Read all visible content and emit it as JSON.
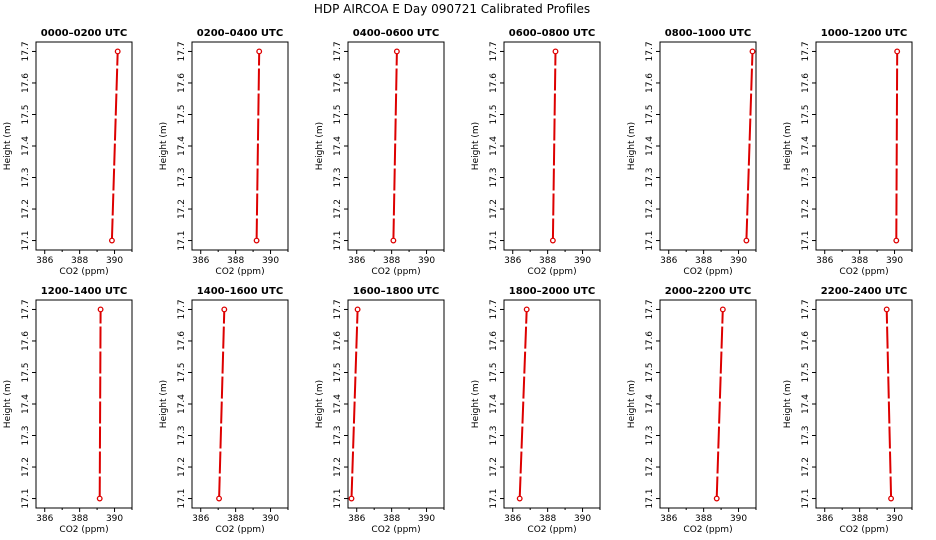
{
  "title": "HDP AIRCOA E  Day 090721  Calibrated Profiles",
  "colors": {
    "profile": "#dd0000",
    "axis": "#000000",
    "background": "#ffffff"
  },
  "chart_data": [
    {
      "type": "line",
      "title": "0000–0200 UTC",
      "xlabel": "CO2 (ppm)",
      "ylabel": "Height (m)",
      "xlim": [
        385.5,
        391
      ],
      "ylim": [
        17.07,
        17.73
      ],
      "xticks": [
        386,
        388,
        390
      ],
      "xtick_labels": [
        "386",
        "388",
        "390"
      ],
      "yticks": [
        17.1,
        17.2,
        17.3,
        17.4,
        17.5,
        17.6,
        17.7
      ],
      "ytick_labels": [
        "17.1",
        "17.2",
        "17.3",
        "17.4",
        "17.5",
        "17.6",
        "17.7"
      ],
      "grid": false,
      "series": [
        {
          "x": [
            389.85,
            390.18
          ],
          "y": [
            17.1,
            17.7
          ]
        }
      ]
    },
    {
      "type": "line",
      "title": "0200–0400 UTC",
      "xlabel": "CO2 (ppm)",
      "ylabel": "Height (m)",
      "xlim": [
        385.5,
        391
      ],
      "ylim": [
        17.07,
        17.73
      ],
      "xticks": [
        386,
        388,
        390
      ],
      "xtick_labels": [
        "386",
        "388",
        "390"
      ],
      "yticks": [
        17.1,
        17.2,
        17.3,
        17.4,
        17.5,
        17.6,
        17.7
      ],
      "ytick_labels": [
        "17.1",
        "17.2",
        "17.3",
        "17.4",
        "17.5",
        "17.6",
        "17.7"
      ],
      "grid": false,
      "series": [
        {
          "x": [
            389.2,
            389.35
          ],
          "y": [
            17.1,
            17.7
          ]
        }
      ]
    },
    {
      "type": "line",
      "title": "0400–0600 UTC",
      "xlabel": "CO2 (ppm)",
      "ylabel": "Height (m)",
      "xlim": [
        385.5,
        391
      ],
      "ylim": [
        17.07,
        17.73
      ],
      "xticks": [
        386,
        388,
        390
      ],
      "xtick_labels": [
        "386",
        "388",
        "390"
      ],
      "yticks": [
        17.1,
        17.2,
        17.3,
        17.4,
        17.5,
        17.6,
        17.7
      ],
      "ytick_labels": [
        "17.1",
        "17.2",
        "17.3",
        "17.4",
        "17.5",
        "17.6",
        "17.7"
      ],
      "grid": false,
      "series": [
        {
          "x": [
            388.1,
            388.3
          ],
          "y": [
            17.1,
            17.7
          ]
        }
      ]
    },
    {
      "type": "line",
      "title": "0600–0800 UTC",
      "xlabel": "CO2 (ppm)",
      "ylabel": "Height (m)",
      "xlim": [
        385.5,
        391
      ],
      "ylim": [
        17.07,
        17.73
      ],
      "xticks": [
        386,
        388,
        390
      ],
      "xtick_labels": [
        "386",
        "388",
        "390"
      ],
      "yticks": [
        17.1,
        17.2,
        17.3,
        17.4,
        17.5,
        17.6,
        17.7
      ],
      "ytick_labels": [
        "17.1",
        "17.2",
        "17.3",
        "17.4",
        "17.5",
        "17.6",
        "17.7"
      ],
      "grid": false,
      "series": [
        {
          "x": [
            388.3,
            388.45
          ],
          "y": [
            17.1,
            17.7
          ]
        }
      ]
    },
    {
      "type": "line",
      "title": "0800–1000 UTC",
      "xlabel": "CO2 (ppm)",
      "ylabel": "Height (m)",
      "xlim": [
        385.5,
        391
      ],
      "ylim": [
        17.07,
        17.73
      ],
      "xticks": [
        386,
        388,
        390
      ],
      "xtick_labels": [
        "386",
        "388",
        "390"
      ],
      "yticks": [
        17.1,
        17.2,
        17.3,
        17.4,
        17.5,
        17.6,
        17.7
      ],
      "ytick_labels": [
        "17.1",
        "17.2",
        "17.3",
        "17.4",
        "17.5",
        "17.6",
        "17.7"
      ],
      "grid": false,
      "series": [
        {
          "x": [
            390.45,
            390.8
          ],
          "y": [
            17.1,
            17.7
          ]
        }
      ]
    },
    {
      "type": "line",
      "title": "1000–1200 UTC",
      "xlabel": "CO2 (ppm)",
      "ylabel": "Height (m)",
      "xlim": [
        385.5,
        391
      ],
      "ylim": [
        17.07,
        17.73
      ],
      "xticks": [
        386,
        388,
        390
      ],
      "xtick_labels": [
        "386",
        "388",
        "390"
      ],
      "yticks": [
        17.1,
        17.2,
        17.3,
        17.4,
        17.5,
        17.6,
        17.7
      ],
      "ytick_labels": [
        "17.1",
        "17.2",
        "17.3",
        "17.4",
        "17.5",
        "17.6",
        "17.7"
      ],
      "grid": false,
      "series": [
        {
          "x": [
            390.1,
            390.15
          ],
          "y": [
            17.1,
            17.7
          ]
        }
      ]
    },
    {
      "type": "line",
      "title": "1200–1400 UTC",
      "xlabel": "CO2 (ppm)",
      "ylabel": "Height (m)",
      "xlim": [
        385.5,
        391
      ],
      "ylim": [
        17.07,
        17.73
      ],
      "xticks": [
        386,
        388,
        390
      ],
      "xtick_labels": [
        "386",
        "388",
        "390"
      ],
      "yticks": [
        17.1,
        17.2,
        17.3,
        17.4,
        17.5,
        17.6,
        17.7
      ],
      "ytick_labels": [
        "17.1",
        "17.2",
        "17.3",
        "17.4",
        "17.5",
        "17.6",
        "17.7"
      ],
      "grid": false,
      "series": [
        {
          "x": [
            389.15,
            389.2
          ],
          "y": [
            17.1,
            17.7
          ]
        }
      ]
    },
    {
      "type": "line",
      "title": "1400–1600 UTC",
      "xlabel": "CO2 (ppm)",
      "ylabel": "Height (m)",
      "xlim": [
        385.5,
        391
      ],
      "ylim": [
        17.07,
        17.73
      ],
      "xticks": [
        386,
        388,
        390
      ],
      "xtick_labels": [
        "386",
        "388",
        "390"
      ],
      "yticks": [
        17.1,
        17.2,
        17.3,
        17.4,
        17.5,
        17.6,
        17.7
      ],
      "ytick_labels": [
        "17.1",
        "17.2",
        "17.3",
        "17.4",
        "17.5",
        "17.6",
        "17.7"
      ],
      "grid": false,
      "series": [
        {
          "x": [
            387.05,
            387.35
          ],
          "y": [
            17.1,
            17.7
          ]
        }
      ]
    },
    {
      "type": "line",
      "title": "1600–1800 UTC",
      "xlabel": "CO2 (ppm)",
      "ylabel": "Height (m)",
      "xlim": [
        385.5,
        391
      ],
      "ylim": [
        17.07,
        17.73
      ],
      "xticks": [
        386,
        388,
        390
      ],
      "xtick_labels": [
        "386",
        "388",
        "390"
      ],
      "yticks": [
        17.1,
        17.2,
        17.3,
        17.4,
        17.5,
        17.6,
        17.7
      ],
      "ytick_labels": [
        "17.1",
        "17.2",
        "17.3",
        "17.4",
        "17.5",
        "17.6",
        "17.7"
      ],
      "grid": false,
      "series": [
        {
          "x": [
            385.7,
            386.05
          ],
          "y": [
            17.1,
            17.7
          ]
        }
      ]
    },
    {
      "type": "line",
      "title": "1800–2000 UTC",
      "xlabel": "CO2 (ppm)",
      "ylabel": "Height (m)",
      "xlim": [
        385.5,
        391
      ],
      "ylim": [
        17.07,
        17.73
      ],
      "xticks": [
        386,
        388,
        390
      ],
      "xtick_labels": [
        "386",
        "388",
        "390"
      ],
      "yticks": [
        17.1,
        17.2,
        17.3,
        17.4,
        17.5,
        17.6,
        17.7
      ],
      "ytick_labels": [
        "17.1",
        "17.2",
        "17.3",
        "17.4",
        "17.5",
        "17.6",
        "17.7"
      ],
      "grid": false,
      "series": [
        {
          "x": [
            386.4,
            386.8
          ],
          "y": [
            17.1,
            17.7
          ]
        }
      ]
    },
    {
      "type": "line",
      "title": "2000–2200 UTC",
      "xlabel": "CO2 (ppm)",
      "ylabel": "Height (m)",
      "xlim": [
        385.5,
        391
      ],
      "ylim": [
        17.07,
        17.73
      ],
      "xticks": [
        386,
        388,
        390
      ],
      "xtick_labels": [
        "386",
        "388",
        "390"
      ],
      "yticks": [
        17.1,
        17.2,
        17.3,
        17.4,
        17.5,
        17.6,
        17.7
      ],
      "ytick_labels": [
        "17.1",
        "17.2",
        "17.3",
        "17.4",
        "17.5",
        "17.6",
        "17.7"
      ],
      "grid": false,
      "series": [
        {
          "x": [
            388.75,
            389.1
          ],
          "y": [
            17.1,
            17.7
          ]
        }
      ]
    },
    {
      "type": "line",
      "title": "2200–2400 UTC",
      "xlabel": "CO2 (ppm)",
      "ylabel": "Height (m)",
      "xlim": [
        385.5,
        391
      ],
      "ylim": [
        17.07,
        17.73
      ],
      "xticks": [
        386,
        388,
        390
      ],
      "xtick_labels": [
        "386",
        "388",
        "390"
      ],
      "yticks": [
        17.1,
        17.2,
        17.3,
        17.4,
        17.5,
        17.6,
        17.7
      ],
      "ytick_labels": [
        "17.1",
        "17.2",
        "17.3",
        "17.4",
        "17.5",
        "17.6",
        "17.7"
      ],
      "grid": false,
      "series": [
        {
          "x": [
            389.8,
            389.55
          ],
          "y": [
            17.1,
            17.7
          ]
        }
      ]
    }
  ]
}
